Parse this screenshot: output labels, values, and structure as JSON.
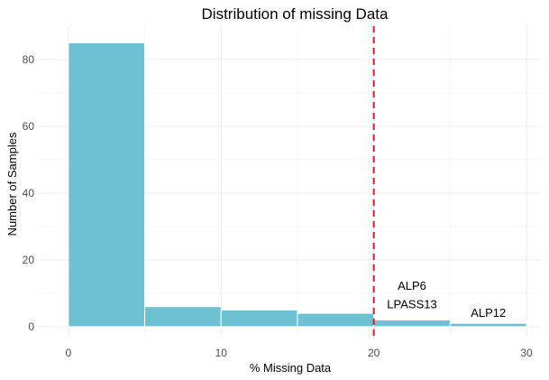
{
  "chart_data": {
    "type": "bar",
    "subtype": "histogram",
    "title": "Distribution of missing Data",
    "xlabel": "% Missing Data",
    "ylabel": "Number of Samples",
    "xlim": [
      -2,
      31
    ],
    "ylim": [
      -3,
      90
    ],
    "x_ticks": [
      0,
      10,
      20,
      30
    ],
    "y_ticks": [
      0,
      20,
      40,
      60,
      80
    ],
    "bins": [
      {
        "x0": 0,
        "x1": 5,
        "count": 85
      },
      {
        "x0": 5,
        "x1": 10,
        "count": 6
      },
      {
        "x0": 10,
        "x1": 15,
        "count": 5
      },
      {
        "x0": 15,
        "x1": 20,
        "count": 4
      },
      {
        "x0": 20,
        "x1": 25,
        "count": 2
      },
      {
        "x0": 25,
        "x1": 30,
        "count": 1
      }
    ],
    "threshold": {
      "x": 20,
      "color": "#e31a1c",
      "style": "dashed"
    },
    "annotations": [
      {
        "text": "ALP6",
        "x": 22.5,
        "y": 11
      },
      {
        "text": "LPASS13",
        "x": 22.5,
        "y": 5.5
      },
      {
        "text": "ALP12",
        "x": 27.5,
        "y": 3
      }
    ],
    "grid": true,
    "colors": {
      "bar": "#6cc2d3",
      "bar_outline": "#ffffff"
    }
  }
}
